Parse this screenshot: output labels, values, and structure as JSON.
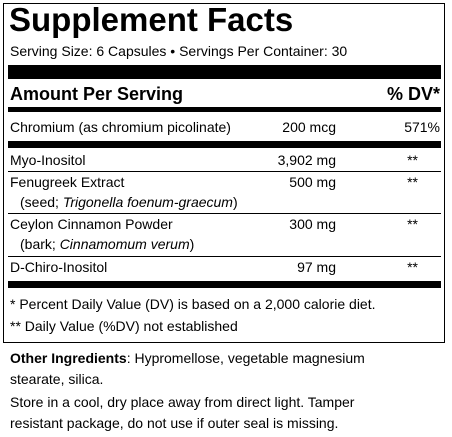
{
  "title": "Supplement Facts",
  "serving": "Serving Size: 6 Capsules • Servings Per Container: 30",
  "header": {
    "amount": "Amount Per Serving",
    "dv": "% DV*"
  },
  "rows": [
    {
      "name": "Chromium (as chromium picolinate)",
      "amount": "200 mcg",
      "dv": "571%"
    },
    {
      "name": "Myo-Inositol",
      "amount": "3,902 mg",
      "dv": "**"
    },
    {
      "name": "Fenugreek Extract",
      "amount": "500 mg",
      "dv": "**",
      "source_prefix": "(seed; ",
      "source_latin": "Trigonella foenum-graecum",
      "source_suffix": ")"
    },
    {
      "name": "Ceylon Cinnamon Powder",
      "amount": "300 mg",
      "dv": "**",
      "source_prefix": "(bark; ",
      "source_latin": "Cinnamomum verum",
      "source_suffix": ")"
    },
    {
      "name": "D-Chiro-Inositol",
      "amount": "97 mg",
      "dv": "**"
    }
  ],
  "footnotes": [
    "* Percent Daily Value (DV) is based on a 2,000 calorie diet.",
    "** Daily Value (%DV) not established"
  ],
  "other_ingredients": {
    "label": "Other Ingredients",
    "text_line1": ": Hypromellose, vegetable magnesium",
    "text_line2": "stearate, silica."
  },
  "storage": [
    "Store in a cool, dry place away from direct light. Tamper",
    "resistant package, do not use if outer seal is missing."
  ]
}
